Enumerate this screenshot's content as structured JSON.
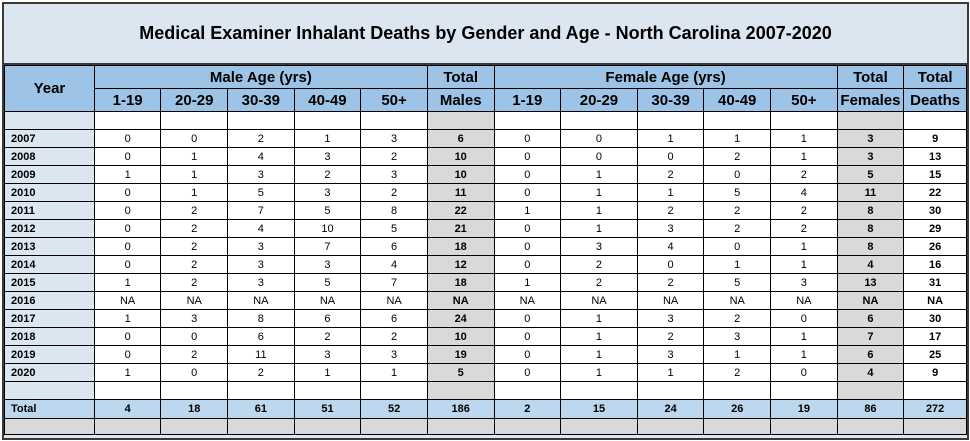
{
  "title": "Medical Examiner Inhalant Deaths by Gender and Age - North Carolina 2007-2020",
  "headers": {
    "year": "Year",
    "male_group": "Male Age (yrs)",
    "total_males_line1": "Total",
    "total_males_line2": "Males",
    "female_group": "Female Age (yrs)",
    "total_females_line1": "Total",
    "total_females_line2": "Females",
    "total_deaths_line1": "Total",
    "total_deaths_line2": "Deaths",
    "male_ages": [
      "1-19",
      "20-29",
      "30-39",
      "40-49",
      "50+"
    ],
    "female_ages": [
      "1-19",
      "20-29",
      "30-39",
      "40-49",
      "50+"
    ]
  },
  "rows": [
    {
      "year": "2007",
      "male": [
        "0",
        "0",
        "2",
        "1",
        "3"
      ],
      "total_males": "6",
      "female": [
        "0",
        "0",
        "1",
        "1",
        "1"
      ],
      "total_females": "3",
      "total_deaths": "9"
    },
    {
      "year": "2008",
      "male": [
        "0",
        "1",
        "4",
        "3",
        "2"
      ],
      "total_males": "10",
      "female": [
        "0",
        "0",
        "0",
        "2",
        "1"
      ],
      "total_females": "3",
      "total_deaths": "13"
    },
    {
      "year": "2009",
      "male": [
        "1",
        "1",
        "3",
        "2",
        "3"
      ],
      "total_males": "10",
      "female": [
        "0",
        "1",
        "2",
        "0",
        "2"
      ],
      "total_females": "5",
      "total_deaths": "15"
    },
    {
      "year": "2010",
      "male": [
        "0",
        "1",
        "5",
        "3",
        "2"
      ],
      "total_males": "11",
      "female": [
        "0",
        "1",
        "1",
        "5",
        "4"
      ],
      "total_females": "11",
      "total_deaths": "22"
    },
    {
      "year": "2011",
      "male": [
        "0",
        "2",
        "7",
        "5",
        "8"
      ],
      "total_males": "22",
      "female": [
        "1",
        "1",
        "2",
        "2",
        "2"
      ],
      "total_females": "8",
      "total_deaths": "30"
    },
    {
      "year": "2012",
      "male": [
        "0",
        "2",
        "4",
        "10",
        "5"
      ],
      "total_males": "21",
      "female": [
        "0",
        "1",
        "3",
        "2",
        "2"
      ],
      "total_females": "8",
      "total_deaths": "29"
    },
    {
      "year": "2013",
      "male": [
        "0",
        "2",
        "3",
        "7",
        "6"
      ],
      "total_males": "18",
      "female": [
        "0",
        "3",
        "4",
        "0",
        "1"
      ],
      "total_females": "8",
      "total_deaths": "26"
    },
    {
      "year": "2014",
      "male": [
        "0",
        "2",
        "3",
        "3",
        "4"
      ],
      "total_males": "12",
      "female": [
        "0",
        "2",
        "0",
        "1",
        "1"
      ],
      "total_females": "4",
      "total_deaths": "16"
    },
    {
      "year": "2015",
      "male": [
        "1",
        "2",
        "3",
        "5",
        "7"
      ],
      "total_males": "18",
      "female": [
        "1",
        "2",
        "2",
        "5",
        "3"
      ],
      "total_females": "13",
      "total_deaths": "31"
    },
    {
      "year": "2016",
      "male": [
        "NA",
        "NA",
        "NA",
        "NA",
        "NA"
      ],
      "total_males": "NA",
      "female": [
        "NA",
        "NA",
        "NA",
        "NA",
        "NA"
      ],
      "total_females": "NA",
      "total_deaths": "NA"
    },
    {
      "year": "2017",
      "male": [
        "1",
        "3",
        "8",
        "6",
        "6"
      ],
      "total_males": "24",
      "female": [
        "0",
        "1",
        "3",
        "2",
        "0"
      ],
      "total_females": "6",
      "total_deaths": "30"
    },
    {
      "year": "2018",
      "male": [
        "0",
        "0",
        "6",
        "2",
        "2"
      ],
      "total_males": "10",
      "female": [
        "0",
        "1",
        "2",
        "3",
        "1"
      ],
      "total_females": "7",
      "total_deaths": "17"
    },
    {
      "year": "2019",
      "male": [
        "0",
        "2",
        "11",
        "3",
        "3"
      ],
      "total_males": "19",
      "female": [
        "0",
        "1",
        "3",
        "1",
        "1"
      ],
      "total_females": "6",
      "total_deaths": "25"
    },
    {
      "year": "2020",
      "male": [
        "1",
        "0",
        "2",
        "1",
        "1"
      ],
      "total_males": "5",
      "female": [
        "0",
        "1",
        "1",
        "2",
        "0"
      ],
      "total_females": "4",
      "total_deaths": "9"
    }
  ],
  "total_row": {
    "label": "Total",
    "male": [
      "4",
      "18",
      "61",
      "51",
      "52"
    ],
    "total_males": "186",
    "female": [
      "2",
      "15",
      "24",
      "26",
      "19"
    ],
    "total_females": "86",
    "total_deaths": "272"
  },
  "colors": {
    "header_blue": "#9dc3e6",
    "title_bg": "#dce6f1",
    "total_row_bg": "#bdd7ee",
    "grey_column": "#d9d9d9"
  }
}
